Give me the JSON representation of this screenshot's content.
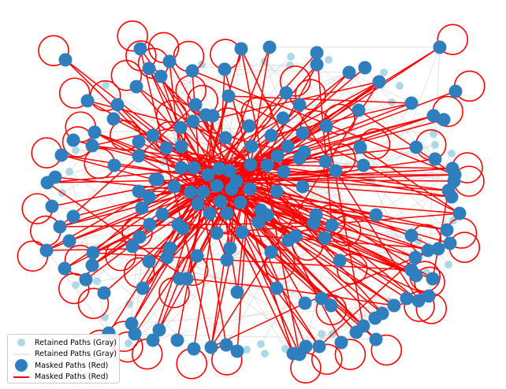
{
  "colors": {
    "retained_node": "#add8e6",
    "retained_edge": "#d3d3d3",
    "masked_node": "#2f7fbf",
    "masked_edge": "#ff0000",
    "background": "#ffffff"
  },
  "legend": {
    "items": [
      {
        "label": "Retained Paths (Gray)",
        "kind": "node",
        "color": "#add8e6"
      },
      {
        "label": "Retained Paths (Gray)",
        "kind": "edge",
        "color": "#d3d3d3"
      },
      {
        "label": "Masked Paths (Red)",
        "kind": "node",
        "color": "#2f7fbf"
      },
      {
        "label": "Masked Paths (Red)",
        "kind": "edge",
        "color": "#ff0000"
      }
    ]
  }
}
